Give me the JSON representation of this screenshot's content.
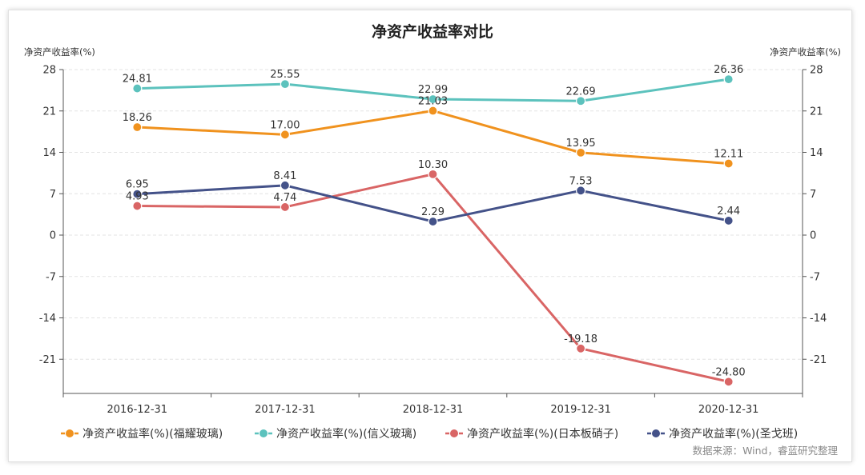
{
  "chart_data": {
    "type": "line",
    "title": "净资产收益率对比",
    "ylabel_left": "净资产收益率(%)",
    "ylabel_right": "净资产收益率(%)",
    "categories": [
      "2016-12-31",
      "2017-12-31",
      "2018-12-31",
      "2019-12-31",
      "2020-12-31"
    ],
    "ylim": [
      -28,
      28
    ],
    "yticks": [
      28,
      21,
      14,
      7,
      0,
      -7,
      -14,
      -21
    ],
    "grid": true,
    "legend_position": "bottom",
    "series": [
      {
        "name": "净资产收益率(%)(福耀玻璃)",
        "color": "#f0921e",
        "values": [
          18.26,
          17.0,
          21.03,
          13.95,
          12.11
        ],
        "labels": [
          "18.26",
          "17.00",
          "21.03",
          "13.95",
          "12.11"
        ]
      },
      {
        "name": "净资产收益率(%)(信义玻璃)",
        "color": "#5cc2bd",
        "values": [
          24.81,
          25.55,
          22.99,
          22.69,
          26.36
        ],
        "labels": [
          "24.81",
          "25.55",
          "22.99",
          "22.69",
          "26.36"
        ]
      },
      {
        "name": "净资产收益率(%)(日本板硝子)",
        "color": "#d96565",
        "values": [
          4.93,
          4.74,
          10.3,
          -19.18,
          -24.8
        ],
        "labels": [
          "4.93",
          "4.74",
          "10.30",
          "-19.18",
          "-24.80"
        ]
      },
      {
        "name": "净资产收益率(%)(圣戈班)",
        "color": "#445289",
        "values": [
          6.95,
          8.41,
          2.29,
          7.53,
          2.44
        ],
        "labels": [
          "6.95",
          "8.41",
          "2.29",
          "7.53",
          "2.44"
        ]
      }
    ],
    "source_note": "数据来源：Wind，睿蓝研究整理"
  }
}
